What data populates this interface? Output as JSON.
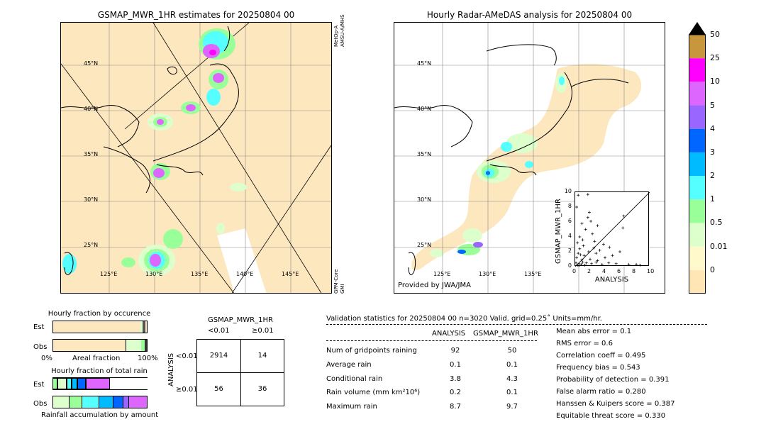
{
  "left_map": {
    "title": "GSMAP_MWR_1HR estimates for 20250804 00",
    "lat_labels": [
      "45°N",
      "40°N",
      "35°N",
      "30°N",
      "25°N"
    ],
    "lon_labels": [
      "125°E",
      "130°E",
      "135°E",
      "140°E",
      "145°E"
    ],
    "sensor_top": "MetOp-A\nAMSU-A/MHS",
    "sensor_bottom": "GPM-Core\nGMI"
  },
  "right_map": {
    "title": "Hourly Radar-AMeDAS analysis for 20250804 00",
    "lat_labels": [
      "45°N",
      "40°N",
      "35°N",
      "30°N",
      "25°N"
    ],
    "lon_labels": [
      "125°E",
      "130°E",
      "135°E"
    ],
    "credit": "Provided by JWA/JMA"
  },
  "colorbar": {
    "labels": [
      "50",
      "25",
      "10",
      "5",
      "4",
      "3",
      "2",
      "1",
      "0.5",
      "0.01",
      "0"
    ],
    "colors": [
      "#c8963c",
      "#ff00ff",
      "#dd66ff",
      "#9966ff",
      "#0066ff",
      "#00bbff",
      "#55ffff",
      "#99ff99",
      "#ddffcc",
      "#fff9cc",
      "#ffe6b4"
    ],
    "top_color": "#000000"
  },
  "fraction_occurrence": {
    "title": "Hourly fraction by occurence",
    "rows": [
      "Est",
      "Obs"
    ],
    "xlabel_left": "0%",
    "xlabel_mid": "Areal fraction",
    "xlabel_right": "100%"
  },
  "fraction_rain": {
    "title": "Hourly fraction of total rain",
    "rows": [
      "Est",
      "Obs"
    ],
    "xlabel": "Rainfall accumulation by amount"
  },
  "contingency": {
    "title": "GSMAP_MWR_1HR",
    "col_labels": [
      "<0.01",
      "≥0.01"
    ],
    "row_axis": "ANALYSIS",
    "row_labels": [
      "<0.01",
      "≥0.01"
    ],
    "cells": [
      [
        "2914",
        "14"
      ],
      [
        "56",
        "36"
      ]
    ]
  },
  "validation": {
    "header": "Validation statistics for 20250804 00  n=3020 Valid. grid=0.25˚ Units=mm/hr.",
    "col_analysis": "ANALYSIS",
    "col_gsmap": "GSMAP_MWR_1HR",
    "rows": [
      {
        "label": "Num of gridpoints raining",
        "analysis": "92",
        "gsmap": "50"
      },
      {
        "label": "Average rain",
        "analysis": "0.1",
        "gsmap": "0.1"
      },
      {
        "label": "Conditional rain",
        "analysis": "3.8",
        "gsmap": "4.3"
      },
      {
        "label": "Rain volume (mm km²10⁶)",
        "analysis": "0.2",
        "gsmap": "0.1"
      },
      {
        "label": "Maximum rain",
        "analysis": "8.7",
        "gsmap": "9.7"
      }
    ],
    "scores": [
      "Mean abs error =    0.1",
      "RMS error =    0.6",
      "Correlation coeff =  0.495",
      "Frequency bias =  0.543",
      "Probability of detection =  0.391",
      "False alarm ratio =  0.280",
      "Hanssen & Kuipers score =  0.387",
      "Equitable threat score =  0.330"
    ]
  },
  "chart_data": {
    "type": "scatter",
    "xlabel": "ANALYSIS",
    "ylabel": "GSMAP_MWR_1HR",
    "xlim": [
      0,
      10
    ],
    "ylim": [
      0,
      10
    ],
    "x_ticks": [
      "0",
      "2",
      "4",
      "6",
      "8",
      "10"
    ],
    "y_ticks": [
      "0",
      "2",
      "4",
      "6",
      "8",
      "10"
    ],
    "points": [
      [
        0.3,
        0.2
      ],
      [
        0.5,
        0.4
      ],
      [
        0.8,
        0.3
      ],
      [
        1.0,
        0.6
      ],
      [
        0.2,
        1.2
      ],
      [
        0.4,
        1.8
      ],
      [
        0.6,
        2.4
      ],
      [
        0.9,
        0.9
      ],
      [
        1.2,
        1.5
      ],
      [
        1.5,
        0.5
      ],
      [
        1.8,
        2.0
      ],
      [
        2.0,
        1.0
      ],
      [
        2.2,
        0.4
      ],
      [
        2.5,
        2.5
      ],
      [
        2.8,
        1.8
      ],
      [
        3.0,
        0.8
      ],
      [
        3.3,
        2.2
      ],
      [
        3.6,
        0.3
      ],
      [
        4.0,
        1.2
      ],
      [
        4.5,
        0.5
      ],
      [
        5.0,
        1.5
      ],
      [
        5.5,
        0.4
      ],
      [
        6.0,
        2.0
      ],
      [
        6.5,
        6.8
      ],
      [
        7.2,
        0.3
      ],
      [
        8.2,
        0.3
      ],
      [
        8.7,
        0.2
      ],
      [
        0.3,
        3.2
      ],
      [
        0.6,
        4.0
      ],
      [
        1.0,
        3.6
      ],
      [
        1.4,
        5.0
      ],
      [
        1.7,
        6.6
      ],
      [
        1.9,
        7.3
      ],
      [
        0.2,
        8.0
      ],
      [
        0.4,
        9.6
      ],
      [
        1.7,
        9.7
      ],
      [
        3.0,
        5.5
      ],
      [
        2.3,
        4.4
      ],
      [
        3.8,
        3.0
      ],
      [
        4.6,
        2.6
      ],
      [
        6.4,
        5.2
      ],
      [
        0.1,
        0.5
      ],
      [
        0.7,
        1.6
      ],
      [
        1.1,
        2.8
      ],
      [
        2.6,
        3.4
      ],
      [
        0.5,
        0.1
      ],
      [
        1.3,
        0.2
      ],
      [
        2.8,
        0.6
      ],
      [
        0.9,
        5.8
      ],
      [
        2.1,
        6.1
      ]
    ]
  }
}
